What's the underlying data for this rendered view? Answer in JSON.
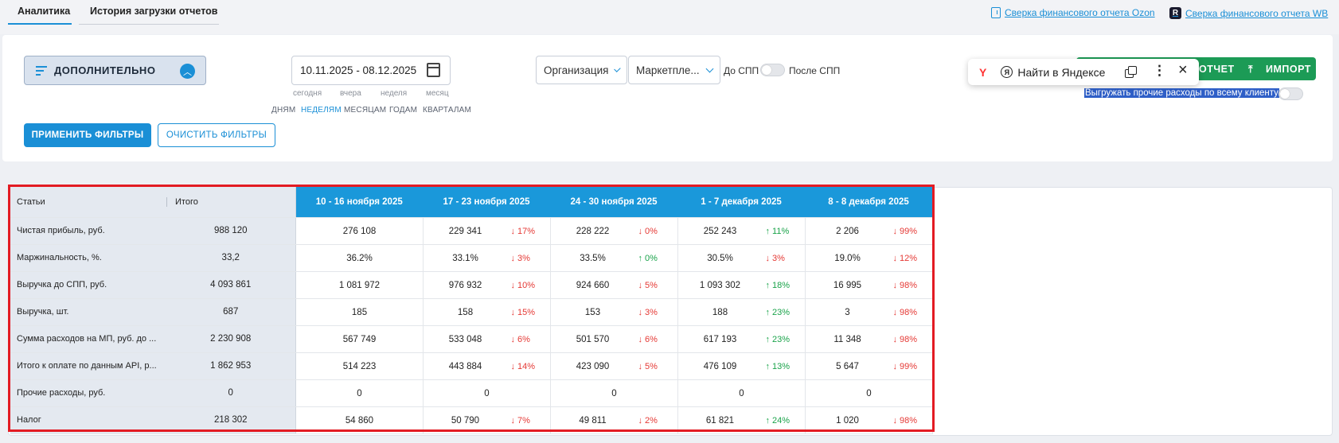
{
  "tabs": [
    {
      "label": "Аналитика",
      "active": true
    },
    {
      "label": "История загрузки отчетов",
      "active": false
    }
  ],
  "top_links": {
    "ozon": "Сверка финансового отчета Ozon",
    "wb": "Сверка финансового отчета WB"
  },
  "filters": {
    "extra_label": "ДОПОЛНИТЕЛЬНО",
    "date_range": "10.11.2025 - 08.12.2025",
    "quick": [
      "сегодня",
      "вчера",
      "неделя",
      "месяц"
    ],
    "granularity": [
      "ДНЯМ",
      "НЕДЕЛЯМ",
      "МЕСЯЦАМ",
      "ГОДАМ",
      "КВАРТАЛАМ"
    ],
    "granularity_active": "НЕДЕЛЯМ",
    "organization": "Организация",
    "marketplace": "Маркетпле...",
    "before_spp": "До СПП",
    "after_spp": "После СПП",
    "apply": "ПРИМЕНИТЬ ФИЛЬТРЫ",
    "clear": "ОЧИСТИТЬ ФИЛЬТРЫ"
  },
  "actions": {
    "report": "ОТЧЕТ",
    "import": "ИМПОРТ",
    "export_note": "Выгружать прочие расходы по всему клиенту"
  },
  "yandex_popup": {
    "logo": "Y",
    "find": "Найти в Яндексе",
    "circle_letter": "Я"
  },
  "table": {
    "head_name": "Статьи",
    "head_total": "Итого",
    "weeks": [
      "10 - 16 ноября 2025",
      "17 - 23 ноября 2025",
      "24 - 30 ноября 2025",
      "1 - 7 декабря 2025",
      "8 - 8 декабря 2025"
    ],
    "rows": [
      {
        "name": "Чистая прибыль, руб.",
        "total": "988 120",
        "cells": [
          [
            "276 108",
            "",
            ""
          ],
          [
            "229 341",
            "↓ 17%",
            "down"
          ],
          [
            "228 222",
            "↓ 0%",
            "down"
          ],
          [
            "252 243",
            "↑ 11%",
            "up"
          ],
          [
            "2 206",
            "↓ 99%",
            "down"
          ]
        ]
      },
      {
        "name": "Маржинальность, %.",
        "total": "33,2",
        "cells": [
          [
            "36.2%",
            "",
            ""
          ],
          [
            "33.1%",
            "↓ 3%",
            "down"
          ],
          [
            "33.5%",
            "↑ 0%",
            "up"
          ],
          [
            "30.5%",
            "↓ 3%",
            "down"
          ],
          [
            "19.0%",
            "↓ 12%",
            "down"
          ]
        ]
      },
      {
        "name": "Выручка до СПП, руб.",
        "total": "4 093 861",
        "cells": [
          [
            "1 081 972",
            "",
            ""
          ],
          [
            "976 932",
            "↓ 10%",
            "down"
          ],
          [
            "924 660",
            "↓ 5%",
            "down"
          ],
          [
            "1 093 302",
            "↑ 18%",
            "up"
          ],
          [
            "16 995",
            "↓ 98%",
            "down"
          ]
        ]
      },
      {
        "name": "Выручка, шт.",
        "total": "687",
        "cells": [
          [
            "185",
            "",
            ""
          ],
          [
            "158",
            "↓ 15%",
            "down"
          ],
          [
            "153",
            "↓ 3%",
            "down"
          ],
          [
            "188",
            "↑ 23%",
            "up"
          ],
          [
            "3",
            "↓ 98%",
            "down"
          ]
        ]
      },
      {
        "name": "Сумма расходов на МП, руб. до ...",
        "total": "2 230 908",
        "cells": [
          [
            "567 749",
            "",
            ""
          ],
          [
            "533 048",
            "↓ 6%",
            "down"
          ],
          [
            "501 570",
            "↓ 6%",
            "down"
          ],
          [
            "617 193",
            "↑ 23%",
            "up"
          ],
          [
            "11 348",
            "↓ 98%",
            "down"
          ]
        ]
      },
      {
        "name": "Итого к оплате по данным API, р...",
        "total": "1 862 953",
        "cells": [
          [
            "514 223",
            "",
            ""
          ],
          [
            "443 884",
            "↓ 14%",
            "down"
          ],
          [
            "423 090",
            "↓ 5%",
            "down"
          ],
          [
            "476 109",
            "↑ 13%",
            "up"
          ],
          [
            "5 647",
            "↓ 99%",
            "down"
          ]
        ]
      },
      {
        "name": "Прочие расходы, руб.",
        "total": "0",
        "cells": [
          [
            "0",
            "",
            ""
          ],
          [
            "0",
            "",
            ""
          ],
          [
            "0",
            "",
            ""
          ],
          [
            "0",
            "",
            ""
          ],
          [
            "0",
            "",
            ""
          ]
        ]
      },
      {
        "name": "Налог",
        "total": "218 302",
        "cells": [
          [
            "54 860",
            "",
            ""
          ],
          [
            "50 790",
            "↓ 7%",
            "down"
          ],
          [
            "49 811",
            "↓ 2%",
            "down"
          ],
          [
            "61 821",
            "↑ 24%",
            "up"
          ],
          [
            "1 020",
            "↓ 98%",
            "down"
          ]
        ]
      }
    ]
  },
  "colors": {
    "accent": "#1a8fd6",
    "header_blue": "#1a98da",
    "green": "#1c9b56",
    "highlight_frame": "#e31b23",
    "down": "#e53935",
    "up": "#1aa34a"
  }
}
